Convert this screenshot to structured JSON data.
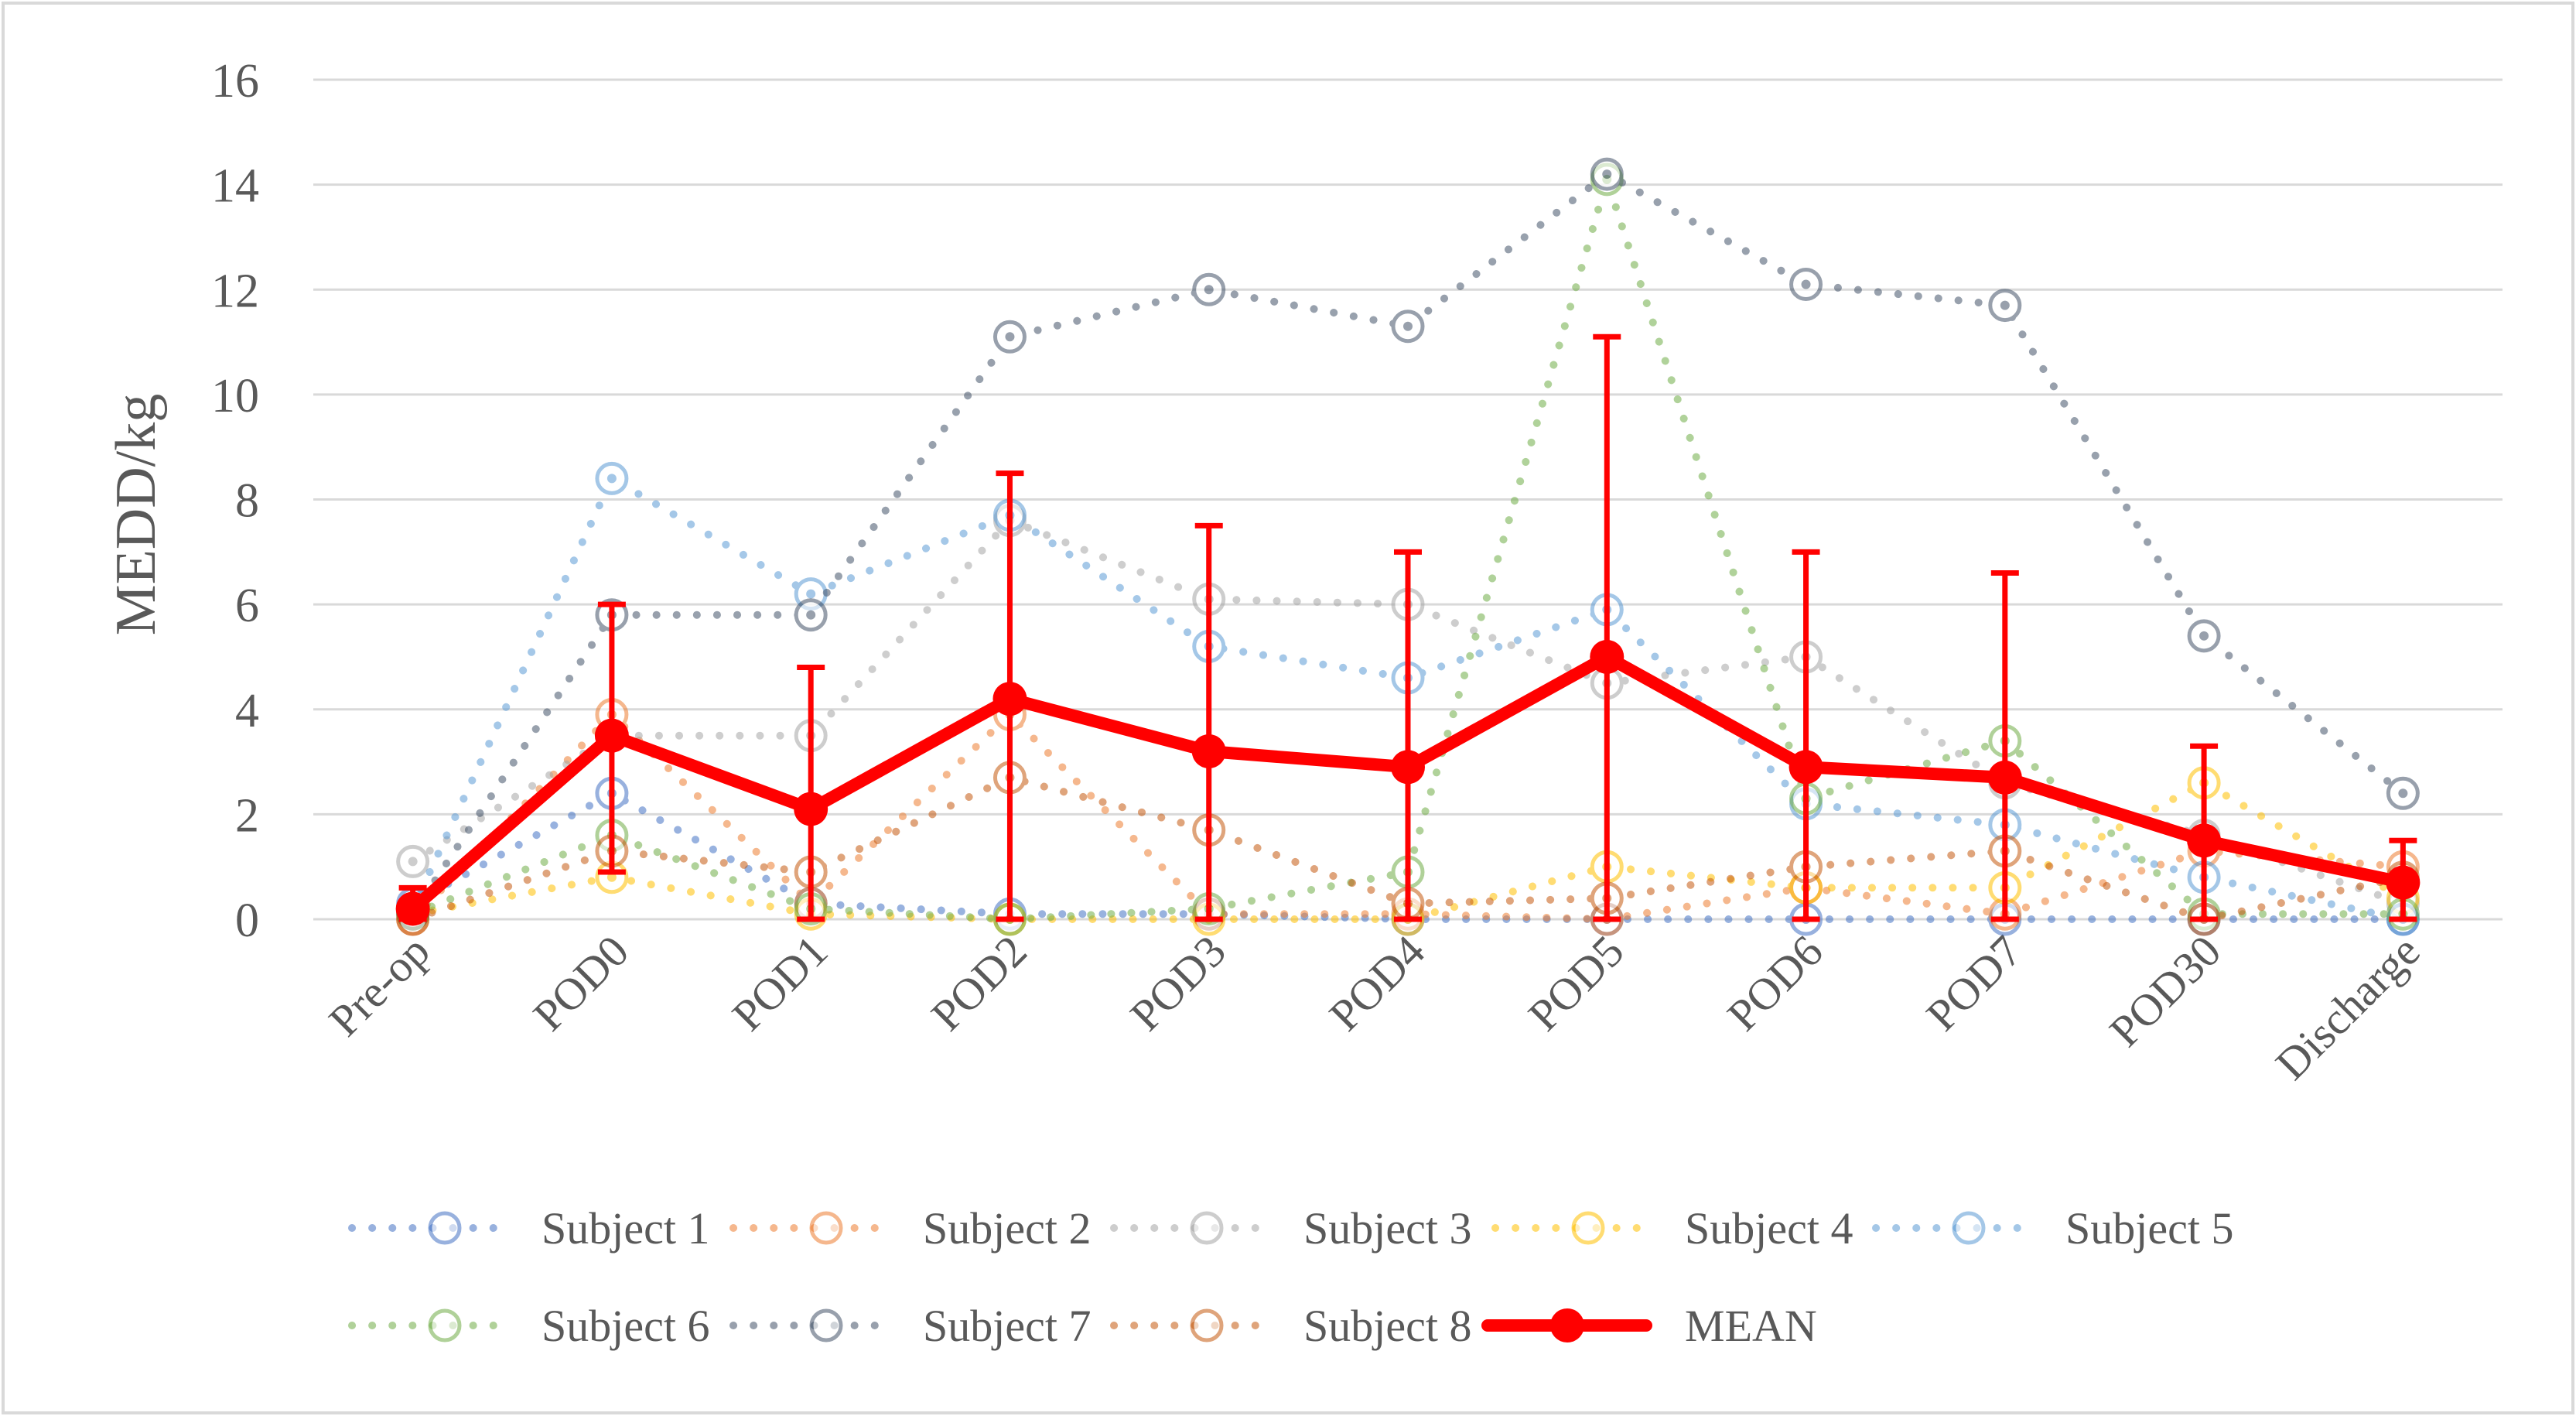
{
  "chart_data": {
    "type": "line",
    "title": "",
    "xlabel": "",
    "ylabel": "MEDD/kg",
    "ylim": [
      0,
      16
    ],
    "yticks": [
      0,
      2,
      4,
      6,
      8,
      10,
      12,
      14,
      16
    ],
    "grid": true,
    "legend_position": "bottom",
    "categories": [
      "Pre-op",
      "POD0",
      "POD1",
      "POD2",
      "POD3",
      "POD4",
      "POD5",
      "POD6",
      "POD7",
      "POD30",
      "Discharge"
    ],
    "series": [
      {
        "name": "Subject 1",
        "color": "#4472C4",
        "style": "dotted",
        "values": [
          0.3,
          2.4,
          0.3,
          0.1,
          0.1,
          0.0,
          0.0,
          0.0,
          0.0,
          0.0,
          0.0
        ]
      },
      {
        "name": "Subject 2",
        "color": "#ED7D31",
        "style": "dotted",
        "values": [
          0.0,
          3.9,
          0.3,
          3.9,
          0.1,
          0.1,
          0.0,
          0.6,
          0.1,
          1.3,
          1.0
        ]
      },
      {
        "name": "Subject 3",
        "color": "#A5A5A5",
        "style": "dotted",
        "values": [
          1.1,
          3.5,
          3.5,
          7.6,
          6.1,
          6.0,
          4.5,
          5.0,
          2.6,
          1.6,
          0.3
        ]
      },
      {
        "name": "Subject 4",
        "color": "#FFC000",
        "style": "dotted",
        "values": [
          0.1,
          0.8,
          0.1,
          0.0,
          0.0,
          0.0,
          1.0,
          0.6,
          0.6,
          2.6,
          0.4
        ]
      },
      {
        "name": "Subject 5",
        "color": "#5B9BD5",
        "style": "dotted",
        "values": [
          0.2,
          8.4,
          6.2,
          7.7,
          5.2,
          4.6,
          5.9,
          2.2,
          1.8,
          0.8,
          0.0
        ]
      },
      {
        "name": "Subject 6",
        "color": "#70AD47",
        "style": "dotted",
        "values": [
          0.1,
          1.6,
          0.2,
          0.0,
          0.2,
          0.9,
          14.1,
          2.3,
          3.4,
          0.1,
          0.1
        ]
      },
      {
        "name": "Subject 7",
        "color": "#44546A",
        "style": "dotted",
        "values": [
          0.1,
          5.8,
          5.8,
          11.1,
          12.0,
          11.3,
          14.2,
          12.1,
          11.7,
          5.4,
          2.4
        ]
      },
      {
        "name": "Subject 8",
        "color": "#C55A11",
        "style": "dotted",
        "values": [
          0.0,
          1.3,
          0.9,
          2.7,
          1.7,
          0.3,
          0.4,
          1.0,
          1.3,
          0.0,
          0.8
        ]
      },
      {
        "name": "MEAN",
        "color": "#FF0000",
        "style": "solid",
        "values": [
          0.2,
          3.5,
          2.1,
          4.2,
          3.2,
          2.9,
          5.0,
          2.9,
          2.7,
          1.5,
          0.7
        ],
        "error_upper": [
          0.6,
          6.0,
          4.8,
          8.5,
          7.5,
          7.0,
          11.1,
          7.0,
          6.6,
          3.3,
          1.5
        ],
        "error_lower": [
          0.0,
          0.9,
          0.0,
          0.0,
          0.0,
          0.0,
          0.0,
          0.0,
          0.0,
          0.0,
          0.0
        ]
      }
    ]
  }
}
